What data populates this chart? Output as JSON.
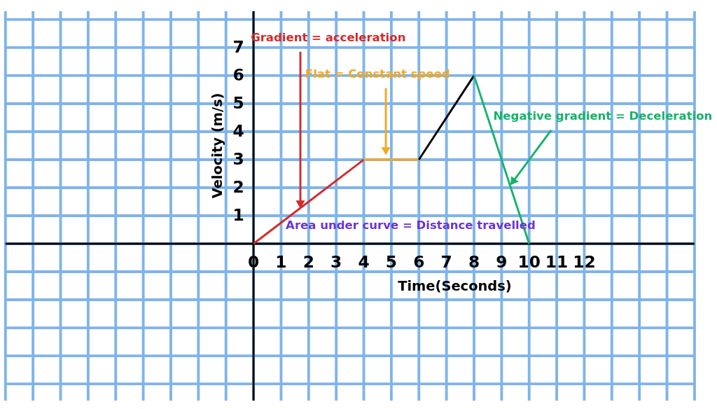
{
  "chart_data": {
    "type": "line",
    "xlabel": "Time(Seconds)",
    "ylabel": "Velocity (m/s)",
    "xlim": [
      -9,
      16
    ],
    "ylim": [
      -5.6,
      8.3
    ],
    "xticks": [
      0,
      1,
      2,
      3,
      4,
      5,
      6,
      7,
      8,
      9,
      10,
      11,
      12
    ],
    "yticks": [
      1,
      2,
      3,
      4,
      5,
      6,
      7
    ],
    "grid": true,
    "marker": "none",
    "line_style": "solid",
    "series": [
      {
        "color": "#d42a2a",
        "x": [
          0,
          4
        ],
        "values": [
          0,
          3
        ]
      },
      {
        "color": "#f2a922",
        "x": [
          4,
          6
        ],
        "values": [
          3,
          3
        ]
      },
      {
        "color": "#000000",
        "x": [
          6,
          8
        ],
        "values": [
          3,
          6
        ]
      },
      {
        "color": "#17b26a",
        "x": [
          8,
          10
        ],
        "values": [
          6,
          0
        ]
      }
    ],
    "annotations": [
      {
        "text": "Gradient = acceleration",
        "x": 1.7,
        "y": 1.4
      },
      {
        "text": "Flat = Constant speed",
        "x": 4.8,
        "y": 3.3
      },
      {
        "text": "Negative gradient = Deceleration",
        "x": 9.4,
        "y": 2.2
      },
      "Area under curve = Distance travelled"
    ]
  }
}
